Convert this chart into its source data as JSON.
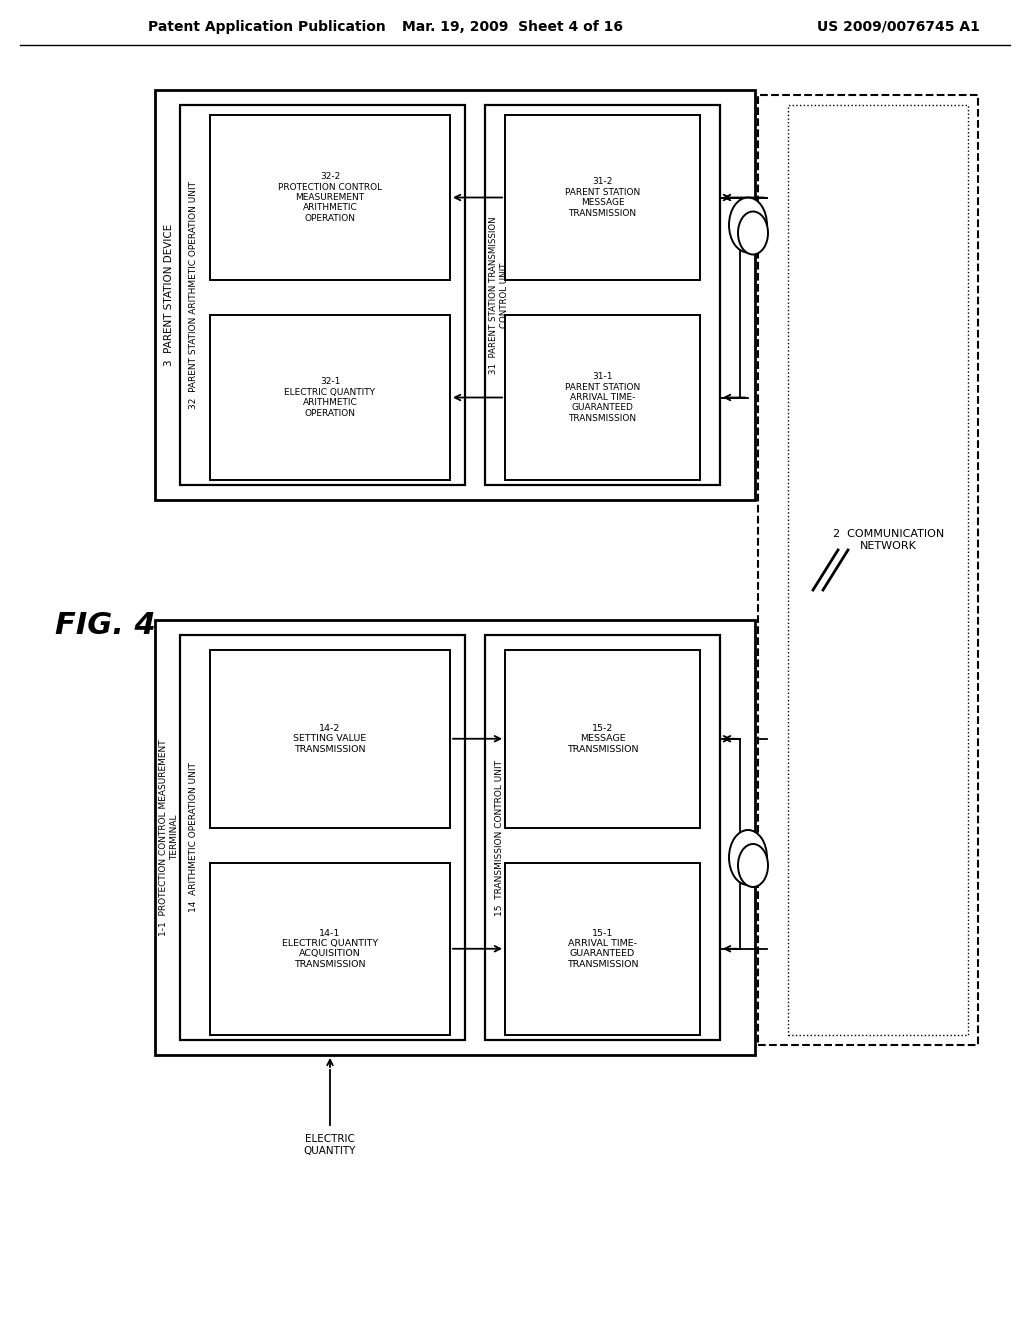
{
  "bg_color": "#ffffff",
  "header_left": "Patent Application Publication",
  "header_mid": "Mar. 19, 2009  Sheet 4 of 16",
  "header_right": "US 2009/0076745 A1",
  "fig_label": "FIG. 4",
  "top_outer_label": "3  PARENT STATION DEVICE",
  "top_arith_label": "32  PARENT STATION ARITHMETIC OPERATION UNIT",
  "top_trans_label": "31  PARENT STATION TRANSMISSION\nCONTROL UNIT",
  "top_box1_label": "32-2\nPROTECTION CONTROL\nMEASUREMENT\nARITHMETIC\nOPERATION",
  "top_box2_label": "32-1\nELECTRIC QUANTITY\nARITHMETIC\nOPERATION",
  "top_box3_label": "31-2\nPARENT STATION\nMESSAGE\nTRANSMISSION",
  "top_box4_label": "31-1\nPARENT STATION\nARRIVAL TIME-\nGUARANTEED\nTRANSMISSION",
  "bot_outer_label": "1-1  PROTECTION CONTROL MEASUREMENT\nTERMINAL",
  "bot_arith_label": "14  ARITHMETIC OPERATION UNIT",
  "bot_trans_label": "15  TRANSMISSION CONTROL UNIT",
  "bot_box1_label": "14-2\nSETTING VALUE\nTRANSMISSION",
  "bot_box2_label": "14-1\nELECTRIC QUANTITY\nACQUISITION\nTRANSMISSION",
  "bot_box3_label": "15-2\nMESSAGE\nTRANSMISSION",
  "bot_box4_label": "15-1\nARRIVAL TIME-\nGUARANTEED\nTRANSMISSION",
  "comm_label": "2  COMMUNICATION\nNETWORK",
  "elec_label": "ELECTRIC\nQUANTITY"
}
